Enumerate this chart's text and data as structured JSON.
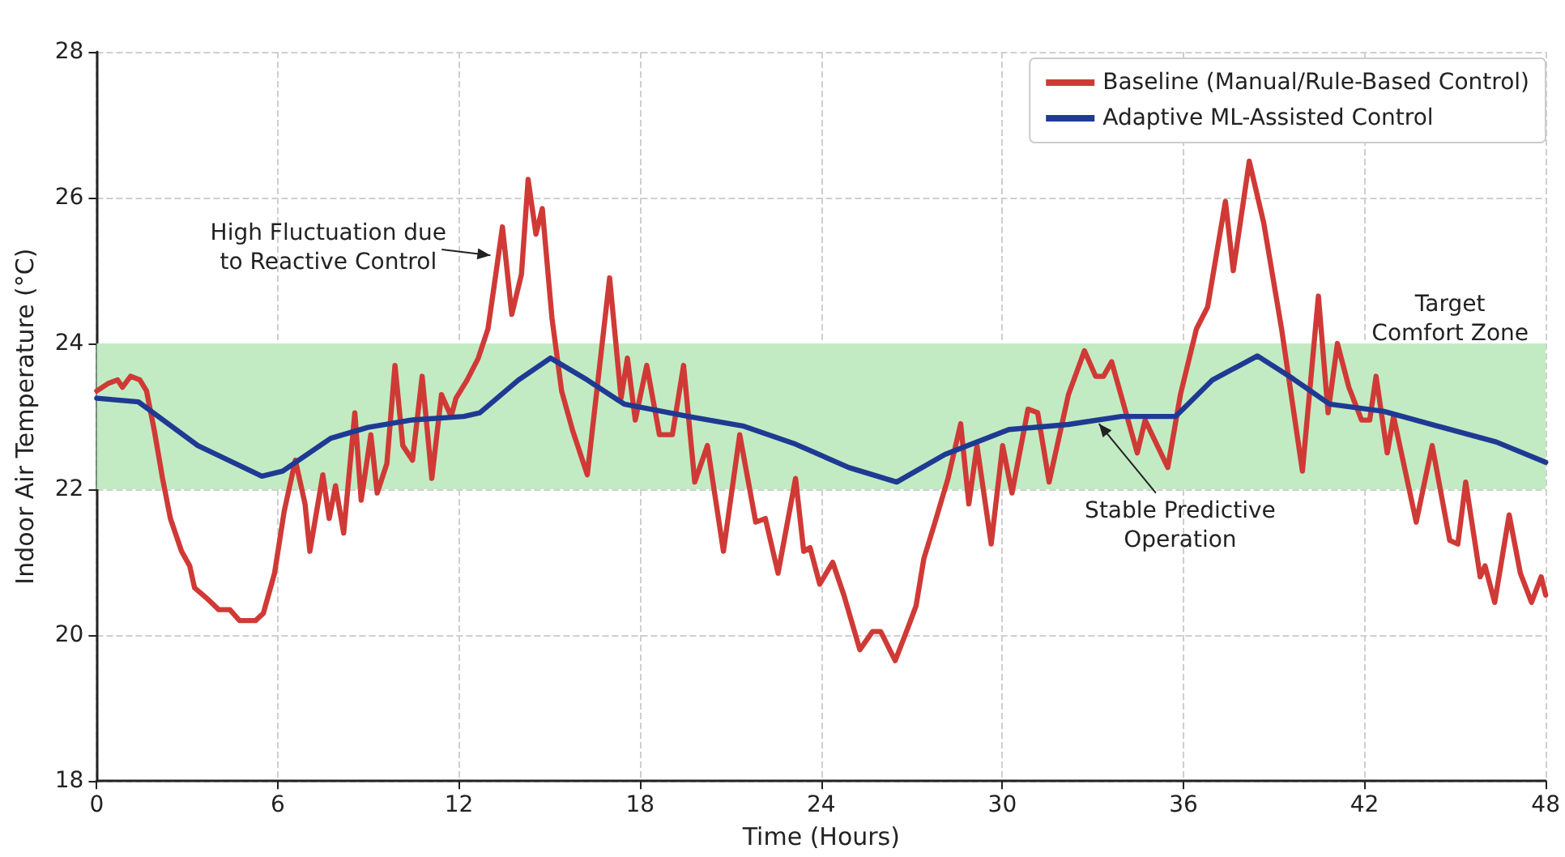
{
  "chart_data": {
    "type": "line",
    "xlabel": "Time (Hours)",
    "ylabel": "Indoor Air Temperature (°C)",
    "xlim": [
      0,
      48
    ],
    "xticks": [
      0,
      6,
      12,
      18,
      24,
      30,
      36,
      42,
      48
    ],
    "ylim": [
      18,
      28
    ],
    "yticks": [
      18,
      20,
      22,
      24,
      26,
      28
    ],
    "grid": true,
    "legend": "top right",
    "marker": "none",
    "line_style": "solid",
    "series": [
      {
        "name": "Baseline (Manual/Rule-Based Control)",
        "color": "#d03a36",
        "x": [
          0,
          0.37,
          0.69,
          0.85,
          1.12,
          1.43,
          1.65,
          1.91,
          2.18,
          2.44,
          2.81,
          3.08,
          3.24,
          3.66,
          4.04,
          4.41,
          4.73,
          5.26,
          5.52,
          5.89,
          6.21,
          6.58,
          6.9,
          7.06,
          7.49,
          7.7,
          7.91,
          8.18,
          8.55,
          8.76,
          9.08,
          9.29,
          9.61,
          9.88,
          10.14,
          10.46,
          10.78,
          11.1,
          11.42,
          11.74,
          11.9,
          12.27,
          12.64,
          12.96,
          13.22,
          13.44,
          13.75,
          14.07,
          14.29,
          14.55,
          14.76,
          15.08,
          15.4,
          15.77,
          16.25,
          16.99,
          17.37,
          17.58,
          17.84,
          18.22,
          18.64,
          19.07,
          19.44,
          19.81,
          20.23,
          20.76,
          21.3,
          21.83,
          22.15,
          22.57,
          23.15,
          23.42,
          23.63,
          23.95,
          24.38,
          24.75,
          25.28,
          25.7,
          25.97,
          26.45,
          26.87,
          27.14,
          27.4,
          27.77,
          28.2,
          28.62,
          28.89,
          29.16,
          29.63,
          30.01,
          30.32,
          30.85,
          31.17,
          31.55,
          32.19,
          32.72,
          33.09,
          33.35,
          33.62,
          34.47,
          34.73,
          35.48,
          35.9,
          36.43,
          36.8,
          37.39,
          37.65,
          38.18,
          38.66,
          39.25,
          39.94,
          40.47,
          40.79,
          41.1,
          41.48,
          41.9,
          42.17,
          42.38,
          42.75,
          42.96,
          43.71,
          44.24,
          44.82,
          45.09,
          45.35,
          45.83,
          45.99,
          46.31,
          46.79,
          47.16,
          47.53,
          47.85,
          48
        ],
        "values": [
          23.35,
          23.45,
          23.5,
          23.4,
          23.55,
          23.5,
          23.35,
          22.8,
          22.15,
          21.6,
          21.15,
          20.95,
          20.65,
          20.5,
          20.35,
          20.35,
          20.2,
          20.2,
          20.3,
          20.85,
          21.7,
          22.4,
          21.8,
          21.15,
          22.2,
          21.6,
          22.05,
          21.4,
          23.05,
          21.85,
          22.75,
          21.95,
          22.35,
          23.7,
          22.6,
          22.4,
          23.55,
          22.15,
          23.3,
          23.0,
          23.25,
          23.5,
          23.8,
          24.2,
          24.95,
          25.6,
          24.4,
          24.95,
          26.25,
          25.5,
          25.85,
          24.35,
          23.35,
          22.8,
          22.2,
          24.9,
          23.25,
          23.8,
          22.95,
          23.7,
          22.75,
          22.75,
          23.7,
          22.1,
          22.6,
          21.15,
          22.75,
          21.55,
          21.6,
          20.85,
          22.15,
          21.15,
          21.2,
          20.7,
          21.0,
          20.55,
          19.8,
          20.05,
          20.05,
          19.65,
          20.1,
          20.4,
          21.05,
          21.55,
          22.15,
          22.9,
          21.8,
          22.6,
          21.25,
          22.6,
          21.95,
          23.1,
          23.05,
          22.1,
          23.3,
          23.9,
          23.55,
          23.55,
          23.75,
          22.5,
          22.95,
          22.3,
          23.3,
          24.2,
          24.5,
          25.95,
          25.0,
          26.5,
          25.65,
          24.2,
          22.25,
          24.65,
          23.05,
          24.0,
          23.4,
          22.95,
          22.95,
          23.55,
          22.5,
          23.0,
          21.55,
          22.6,
          21.3,
          21.25,
          22.1,
          20.8,
          20.95,
          20.45,
          21.65,
          20.85,
          20.45,
          20.8,
          20.55
        ]
      },
      {
        "name": "Adaptive ML-Assisted Control",
        "color": "#1f3a93",
        "x": [
          0,
          1.38,
          3.35,
          5.47,
          6.16,
          7.75,
          8.98,
          10.41,
          12.16,
          12.69,
          13.97,
          15.03,
          16.25,
          17.47,
          19.6,
          21.4,
          23.15,
          24.91,
          26.5,
          28.1,
          30.22,
          32.19,
          33.94,
          35.74,
          36.96,
          38.45,
          39.62,
          40.84,
          42.64,
          44.4,
          46.36,
          48
        ],
        "values": [
          23.25,
          23.2,
          22.6,
          22.18,
          22.25,
          22.7,
          22.85,
          22.95,
          23.0,
          23.05,
          23.5,
          23.8,
          23.5,
          23.17,
          23.0,
          22.87,
          22.62,
          22.3,
          22.1,
          22.48,
          22.82,
          22.89,
          23.0,
          23.0,
          23.5,
          23.83,
          23.52,
          23.17,
          23.07,
          22.87,
          22.65,
          22.37
        ]
      }
    ],
    "bands": [
      {
        "axis": "y",
        "from": 22,
        "to": 24,
        "label": "Target\nComfort Zone",
        "color": "#c3ebc3"
      }
    ],
    "annotations": [
      {
        "text": "High Fluctuation due\nto Reactive Control",
        "x": 13.2,
        "y": 25.2
      },
      {
        "text": "Stable Predictive\nOperation",
        "x": 33.1,
        "y": 22.95
      }
    ]
  }
}
